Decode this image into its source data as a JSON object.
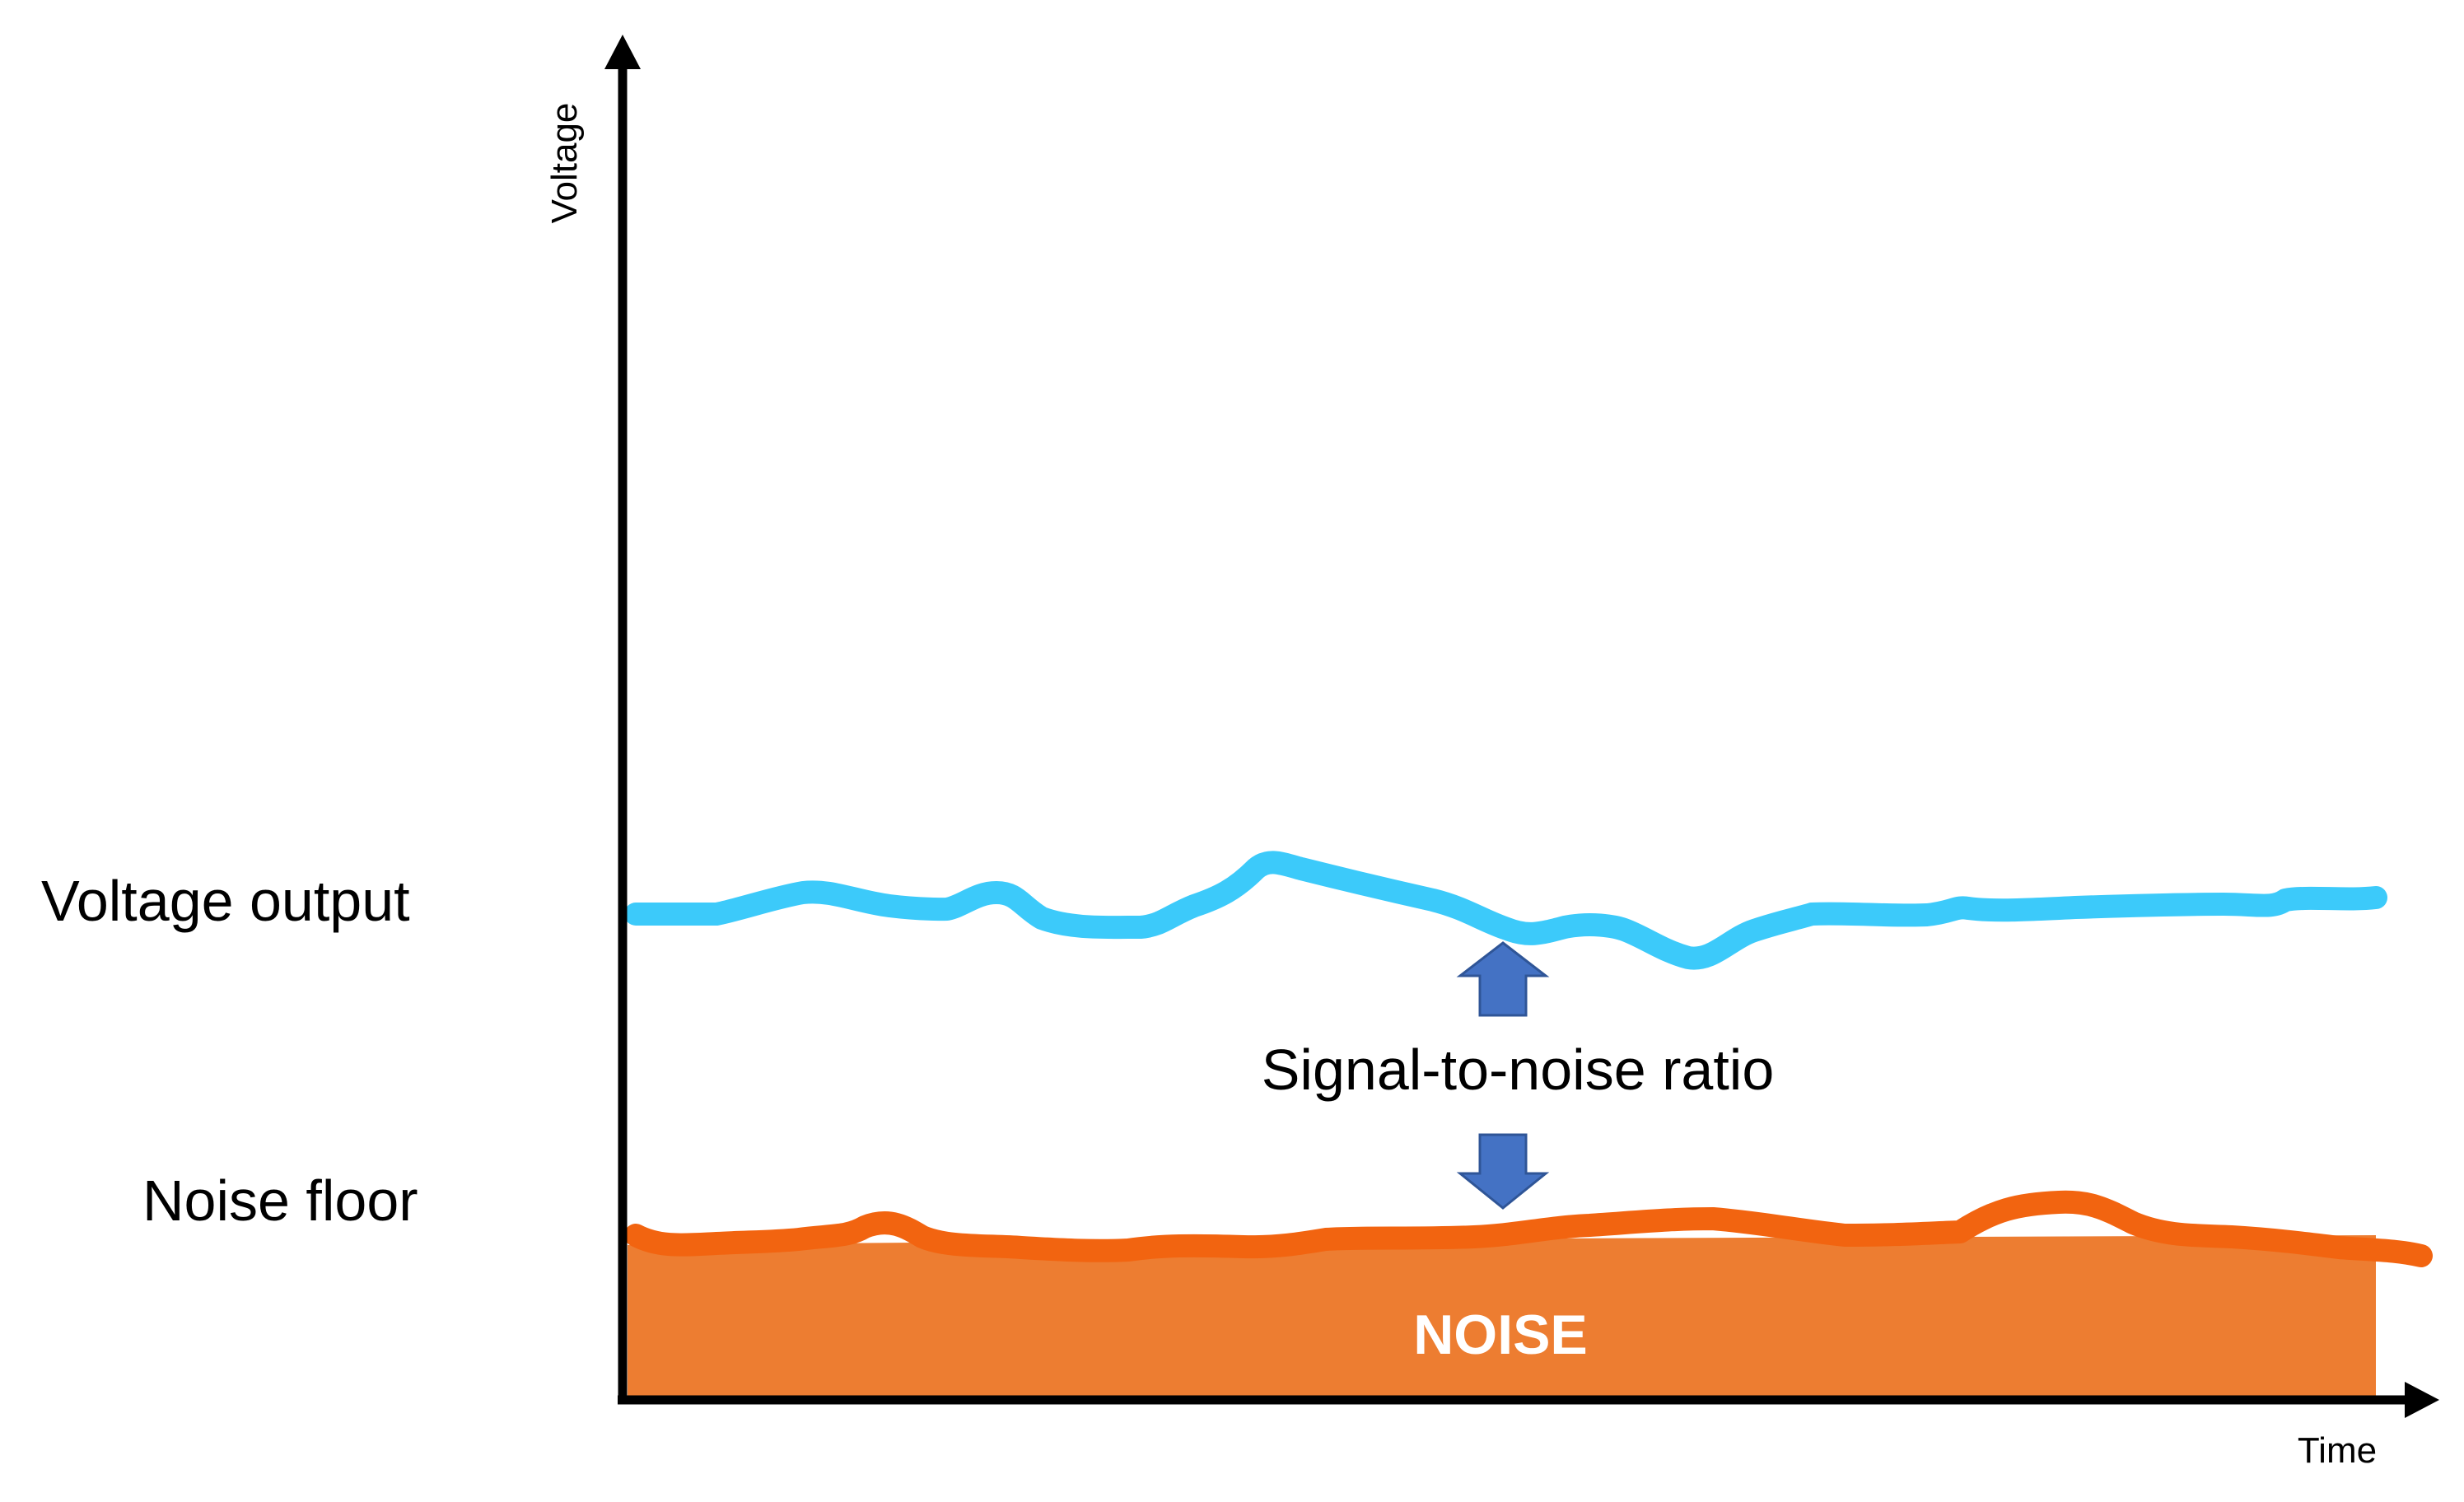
{
  "labels": {
    "voltage_output": "Voltage output",
    "noise_floor": "Noise floor",
    "signal_to_noise": "Signal-to-noise ratio",
    "noise_band": "NOISE",
    "y_axis": "Voltage",
    "x_axis": "Time"
  },
  "colors": {
    "signal_line": "#3ccafa",
    "noise_line": "#f26410",
    "noise_fill": "#ed7d31",
    "arrow_fill": "#4472c4",
    "arrow_stroke": "#2f5597",
    "axis": "#000000"
  }
}
